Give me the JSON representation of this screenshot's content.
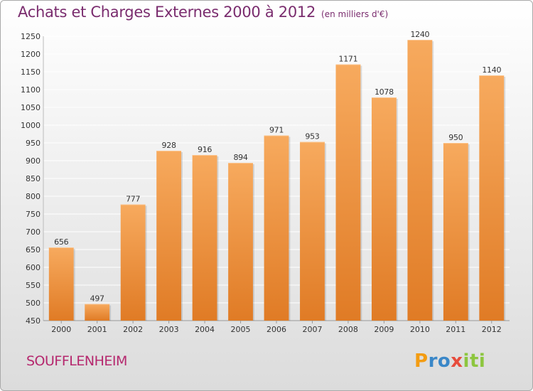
{
  "header": {
    "title": "Achats et Charges Externes 2000 à 2012",
    "subtitle": "(en milliers d'€)"
  },
  "footer": {
    "town": "SOUFFLENHEIM",
    "logo": {
      "text": "Proxiti",
      "letter_colors": [
        "#f39c12",
        "#3a87c8",
        "#3a87c8",
        "#e74c3c",
        "#8dc63f",
        "#8dc63f",
        "#8dc63f"
      ]
    }
  },
  "colors": {
    "bar_light": "#f7aa5e",
    "bar_dark": "#e07b25",
    "grid": "#ffffff",
    "axis_text": "#333333",
    "title": "#7a2c6e",
    "town": "#b5286e"
  },
  "chart_data": {
    "type": "bar",
    "categories": [
      "2000",
      "2001",
      "2002",
      "2003",
      "2004",
      "2005",
      "2006",
      "2007",
      "2008",
      "2009",
      "2010",
      "2011",
      "2012"
    ],
    "values": [
      656,
      497,
      777,
      928,
      916,
      894,
      971,
      953,
      1171,
      1078,
      1240,
      950,
      1140
    ],
    "ylim": [
      450,
      1250
    ],
    "ytick_step": 50,
    "grid": true,
    "data_labels": true,
    "xlabel": "",
    "ylabel": ""
  }
}
